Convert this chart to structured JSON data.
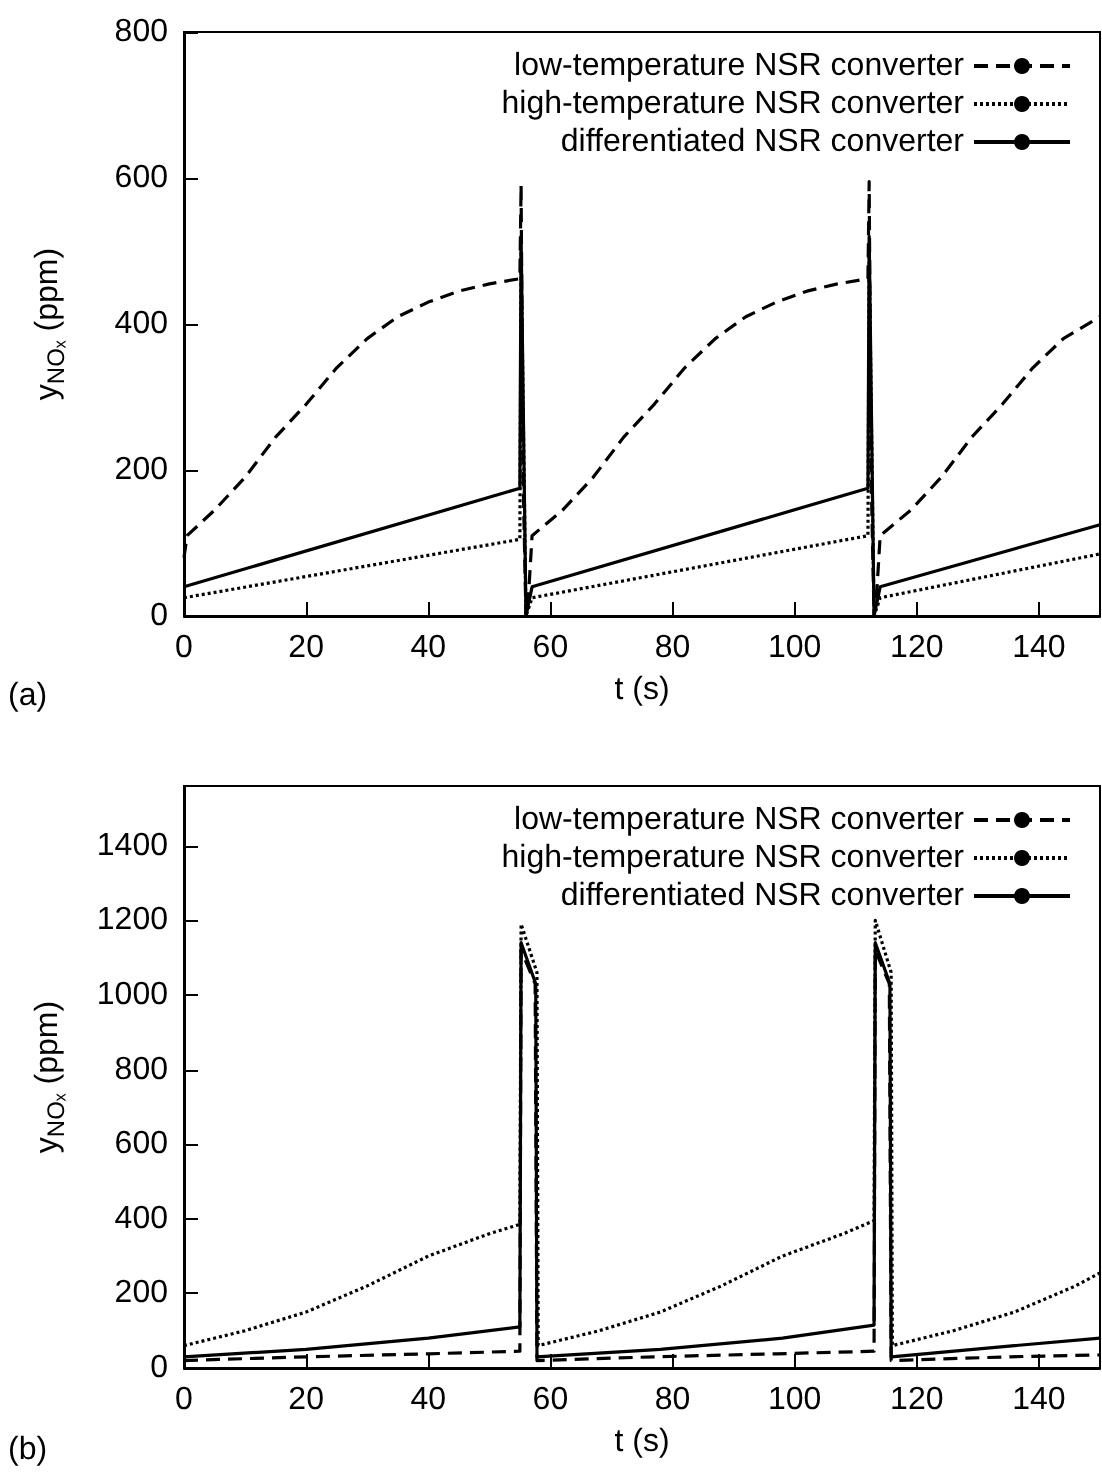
{
  "chart_data": [
    {
      "type": "line",
      "xlabel": "t (s)",
      "ylabel": "y$_{NOₓ}$ (ppm)",
      "annotations": [
        "(a)"
      ],
      "xlim": [
        0,
        150
      ],
      "ylim": [
        0,
        800
      ],
      "xticks": [
        0,
        20,
        40,
        60,
        80,
        100,
        120,
        140
      ],
      "yticks": [
        0,
        200,
        400,
        600,
        800
      ],
      "grid": false,
      "legend": "top right",
      "marker": "none",
      "series": [
        {
          "name": "low-temperature NSR converter",
          "color": "#000000",
          "line_style": "dashed",
          "x": [
            0,
            0.5,
            5,
            10,
            15,
            20,
            25,
            30,
            35,
            40,
            45,
            50,
            55,
            55.2,
            55.5,
            56,
            56.5,
            57,
            62,
            67,
            72,
            77,
            82,
            87,
            92,
            97,
            102,
            107,
            112,
            112.2,
            112.5,
            113,
            113.5,
            114,
            119,
            124,
            129,
            134,
            139,
            144,
            150
          ],
          "values": [
            80,
            110,
            145,
            190,
            245,
            290,
            340,
            380,
            410,
            430,
            445,
            455,
            462,
            590,
            200,
            0,
            40,
            110,
            145,
            190,
            245,
            290,
            340,
            380,
            410,
            430,
            445,
            455,
            462,
            595,
            200,
            0,
            40,
            110,
            145,
            190,
            245,
            290,
            340,
            380,
            410
          ]
        },
        {
          "name": "high-temperature NSR converter",
          "color": "#000000",
          "line_style": "dotted",
          "x": [
            0,
            55,
            55.2,
            56,
            57,
            112,
            112.2,
            113,
            114,
            150
          ],
          "values": [
            25,
            105,
            500,
            0,
            25,
            110,
            500,
            0,
            25,
            85
          ]
        },
        {
          "name": "differentiated NSR converter",
          "color": "#000000",
          "line_style": "solid",
          "x": [
            0,
            55,
            55.2,
            56,
            57,
            112,
            112.2,
            113,
            114,
            150
          ],
          "values": [
            40,
            175,
            520,
            0,
            40,
            175,
            520,
            0,
            40,
            125
          ]
        }
      ]
    },
    {
      "type": "line",
      "xlabel": "t (s)",
      "ylabel": "y$_{NOₓ}$ (ppm)",
      "annotations": [
        "(b)"
      ],
      "xlim": [
        0,
        150
      ],
      "ylim": [
        0,
        1560
      ],
      "xticks": [
        0,
        20,
        40,
        60,
        80,
        100,
        120,
        140
      ],
      "yticks": [
        0,
        200,
        400,
        600,
        800,
        1000,
        1200,
        1400
      ],
      "grid": false,
      "legend": "top right",
      "marker": "none",
      "series": [
        {
          "name": "low-temperature NSR converter",
          "color": "#000000",
          "line_style": "dashed",
          "x": [
            0,
            20,
            40,
            55,
            55.2,
            57.5,
            57.8,
            77,
            97,
            113,
            113.2,
            115.5,
            115.8,
            135,
            150
          ],
          "values": [
            20,
            30,
            38,
            45,
            1120,
            1030,
            20,
            30,
            38,
            45,
            1120,
            1030,
            20,
            30,
            35
          ]
        },
        {
          "name": "high-temperature NSR converter",
          "color": "#000000",
          "line_style": "dotted",
          "x": [
            0,
            10,
            20,
            30,
            40,
            50,
            55,
            55.2,
            57.8,
            58,
            68,
            78,
            88,
            98,
            108,
            113,
            113.2,
            115.8,
            116,
            126,
            136,
            146,
            150
          ],
          "values": [
            60,
            100,
            150,
            220,
            300,
            360,
            385,
            1190,
            1060,
            60,
            100,
            150,
            220,
            300,
            360,
            395,
            1200,
            1060,
            60,
            100,
            150,
            220,
            255
          ]
        },
        {
          "name": "differentiated NSR converter",
          "color": "#000000",
          "line_style": "solid",
          "x": [
            0,
            20,
            40,
            55,
            55.2,
            57.6,
            57.8,
            78,
            98,
            113,
            113.2,
            115.6,
            115.8,
            136,
            150
          ],
          "values": [
            30,
            50,
            80,
            110,
            1140,
            1030,
            30,
            50,
            80,
            115,
            1140,
            1030,
            30,
            60,
            80
          ]
        }
      ]
    }
  ]
}
